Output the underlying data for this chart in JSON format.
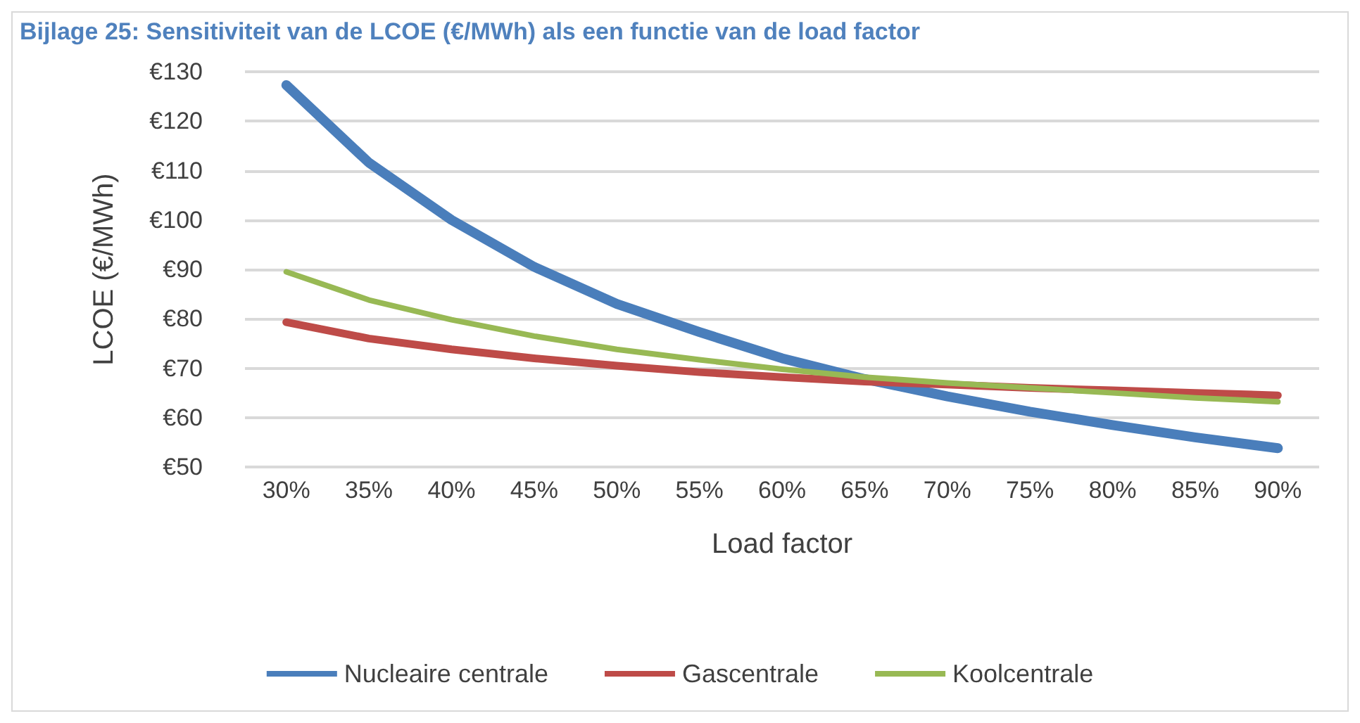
{
  "chart_data": {
    "type": "line",
    "title": "Bijlage 25: Sensitiviteit van de LCOE (€/MWh) als een functie van de load factor",
    "xlabel": "Load factor",
    "ylabel": "LCOE (€/MWh)",
    "categories": [
      "30%",
      "35%",
      "40%",
      "45%",
      "50%",
      "55%",
      "60%",
      "65%",
      "70%",
      "75%",
      "80%",
      "85%",
      "90%"
    ],
    "series": [
      {
        "name": "Nucleaire centrale",
        "color": "#4a7ebb",
        "values": [
          127.3,
          111.6,
          100,
          90.5,
          83,
          77.3,
          72,
          67.8,
          64.3,
          61.2,
          58.5,
          56,
          53.8
        ]
      },
      {
        "name": "Gascentrale",
        "color": "#be4b48",
        "values": [
          79.3,
          76,
          73.8,
          72,
          70.5,
          69.2,
          68.2,
          67.3,
          66.7,
          66,
          65.5,
          65,
          64.5
        ]
      },
      {
        "name": "Koolcentrale",
        "color": "#98b954",
        "values": [
          89.5,
          83.8,
          79.8,
          76.5,
          73.8,
          71.7,
          69.8,
          68.2,
          67,
          66,
          65,
          64,
          63.2
        ]
      }
    ],
    "ylim": [
      50,
      130
    ],
    "yticks": [
      {
        "value": 50,
        "label": "€50"
      },
      {
        "value": 60,
        "label": "€60"
      },
      {
        "value": 70,
        "label": "€70"
      },
      {
        "value": 80,
        "label": "€80"
      },
      {
        "value": 90,
        "label": "€90"
      },
      {
        "value": 100,
        "label": "€100"
      },
      {
        "value": 110,
        "label": "€110"
      },
      {
        "value": 120,
        "label": "€120"
      },
      {
        "value": 130,
        "label": "€130"
      }
    ],
    "grid": "y",
    "legend": "bottom",
    "marker": "none",
    "line_style": "solid"
  }
}
